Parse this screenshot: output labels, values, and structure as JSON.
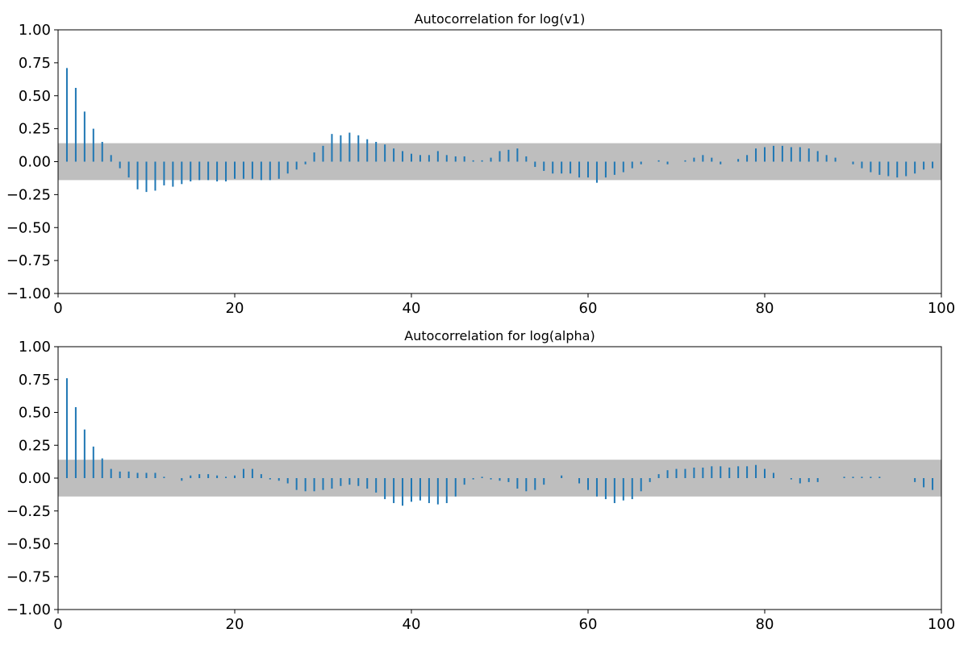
{
  "chart_data": [
    {
      "type": "bar",
      "title": "Autocorrelation for log(v1)",
      "xlabel": "",
      "ylabel": "",
      "xlim": [
        0,
        100
      ],
      "ylim": [
        -1,
        1
      ],
      "xticks": [
        0,
        20,
        40,
        60,
        80,
        100
      ],
      "yticks": [
        -1,
        -0.75,
        -0.5,
        -0.25,
        0,
        0.25,
        0.5,
        0.75,
        1
      ],
      "xtick_labels": [
        "0",
        "20",
        "40",
        "60",
        "80",
        "100"
      ],
      "ytick_labels": [
        "−1.00",
        "−0.75",
        "−0.50",
        "−0.25",
        "0.00",
        "0.25",
        "0.50",
        "0.75",
        "1.00"
      ],
      "confidence_band": 0.14,
      "bar_color": "#1f77b4",
      "band_color": "#bebebe",
      "grid": false,
      "lags": [
        1,
        2,
        3,
        4,
        5,
        6,
        7,
        8,
        9,
        10,
        11,
        12,
        13,
        14,
        15,
        16,
        17,
        18,
        19,
        20,
        21,
        22,
        23,
        24,
        25,
        26,
        27,
        28,
        29,
        30,
        31,
        32,
        33,
        34,
        35,
        36,
        37,
        38,
        39,
        40,
        41,
        42,
        43,
        44,
        45,
        46,
        47,
        48,
        49,
        50,
        51,
        52,
        53,
        54,
        55,
        56,
        57,
        58,
        59,
        60,
        61,
        62,
        63,
        64,
        65,
        66,
        67,
        68,
        69,
        70,
        71,
        72,
        73,
        74,
        75,
        76,
        77,
        78,
        79,
        80,
        81,
        82,
        83,
        84,
        85,
        86,
        87,
        88,
        89,
        90,
        91,
        92,
        93,
        94,
        95,
        96,
        97,
        98,
        99
      ],
      "values": [
        0.71,
        0.56,
        0.38,
        0.25,
        0.15,
        0.05,
        -0.05,
        -0.12,
        -0.21,
        -0.23,
        -0.22,
        -0.18,
        -0.19,
        -0.17,
        -0.15,
        -0.14,
        -0.14,
        -0.15,
        -0.15,
        -0.13,
        -0.13,
        -0.13,
        -0.14,
        -0.14,
        -0.13,
        -0.09,
        -0.06,
        -0.02,
        0.07,
        0.12,
        0.21,
        0.2,
        0.22,
        0.2,
        0.17,
        0.15,
        0.13,
        0.1,
        0.08,
        0.06,
        0.05,
        0.05,
        0.08,
        0.05,
        0.04,
        0.04,
        0.01,
        0.01,
        0.03,
        0.08,
        0.09,
        0.1,
        0.04,
        -0.04,
        -0.07,
        -0.09,
        -0.09,
        -0.09,
        -0.12,
        -0.12,
        -0.16,
        -0.12,
        -0.1,
        -0.08,
        -0.05,
        -0.02,
        0.0,
        0.01,
        -0.02,
        0.0,
        0.01,
        0.03,
        0.05,
        0.03,
        -0.02,
        0.0,
        0.02,
        0.05,
        0.1,
        0.11,
        0.12,
        0.12,
        0.11,
        0.11,
        0.1,
        0.08,
        0.05,
        0.03,
        0.0,
        -0.02,
        -0.05,
        -0.08,
        -0.1,
        -0.11,
        -0.12,
        -0.11,
        -0.09,
        -0.06,
        -0.05
      ]
    },
    {
      "type": "bar",
      "title": "Autocorrelation for log(alpha)",
      "xlabel": "",
      "ylabel": "",
      "xlim": [
        0,
        100
      ],
      "ylim": [
        -1,
        1
      ],
      "xticks": [
        0,
        20,
        40,
        60,
        80,
        100
      ],
      "yticks": [
        -1,
        -0.75,
        -0.5,
        -0.25,
        0,
        0.25,
        0.5,
        0.75,
        1
      ],
      "xtick_labels": [
        "0",
        "20",
        "40",
        "60",
        "80",
        "100"
      ],
      "ytick_labels": [
        "−1.00",
        "−0.75",
        "−0.50",
        "−0.25",
        "0.00",
        "0.25",
        "0.50",
        "0.75",
        "1.00"
      ],
      "confidence_band": 0.14,
      "bar_color": "#1f77b4",
      "band_color": "#bebebe",
      "grid": false,
      "lags": [
        1,
        2,
        3,
        4,
        5,
        6,
        7,
        8,
        9,
        10,
        11,
        12,
        13,
        14,
        15,
        16,
        17,
        18,
        19,
        20,
        21,
        22,
        23,
        24,
        25,
        26,
        27,
        28,
        29,
        30,
        31,
        32,
        33,
        34,
        35,
        36,
        37,
        38,
        39,
        40,
        41,
        42,
        43,
        44,
        45,
        46,
        47,
        48,
        49,
        50,
        51,
        52,
        53,
        54,
        55,
        56,
        57,
        58,
        59,
        60,
        61,
        62,
        63,
        64,
        65,
        66,
        67,
        68,
        69,
        70,
        71,
        72,
        73,
        74,
        75,
        76,
        77,
        78,
        79,
        80,
        81,
        82,
        83,
        84,
        85,
        86,
        87,
        88,
        89,
        90,
        91,
        92,
        93,
        94,
        95,
        96,
        97,
        98,
        99
      ],
      "values": [
        0.76,
        0.54,
        0.37,
        0.24,
        0.15,
        0.07,
        0.05,
        0.05,
        0.04,
        0.04,
        0.04,
        0.01,
        0.0,
        -0.02,
        0.02,
        0.03,
        0.03,
        0.02,
        0.01,
        0.02,
        0.07,
        0.07,
        0.03,
        -0.01,
        -0.02,
        -0.04,
        -0.09,
        -0.1,
        -0.1,
        -0.09,
        -0.08,
        -0.06,
        -0.05,
        -0.06,
        -0.08,
        -0.11,
        -0.16,
        -0.19,
        -0.21,
        -0.18,
        -0.17,
        -0.19,
        -0.2,
        -0.19,
        -0.14,
        -0.05,
        -0.01,
        0.01,
        -0.01,
        -0.02,
        -0.03,
        -0.08,
        -0.1,
        -0.09,
        -0.05,
        0.0,
        0.02,
        0.0,
        -0.04,
        -0.09,
        -0.14,
        -0.16,
        -0.19,
        -0.17,
        -0.16,
        -0.1,
        -0.03,
        0.03,
        0.06,
        0.07,
        0.07,
        0.08,
        0.08,
        0.09,
        0.09,
        0.08,
        0.09,
        0.09,
        0.1,
        0.07,
        0.04,
        0.0,
        -0.01,
        -0.04,
        -0.03,
        -0.03,
        0.0,
        0.0,
        0.01,
        0.01,
        0.01,
        0.01,
        0.01,
        0.0,
        0.0,
        0.0,
        -0.03,
        -0.07,
        -0.09
      ]
    }
  ]
}
